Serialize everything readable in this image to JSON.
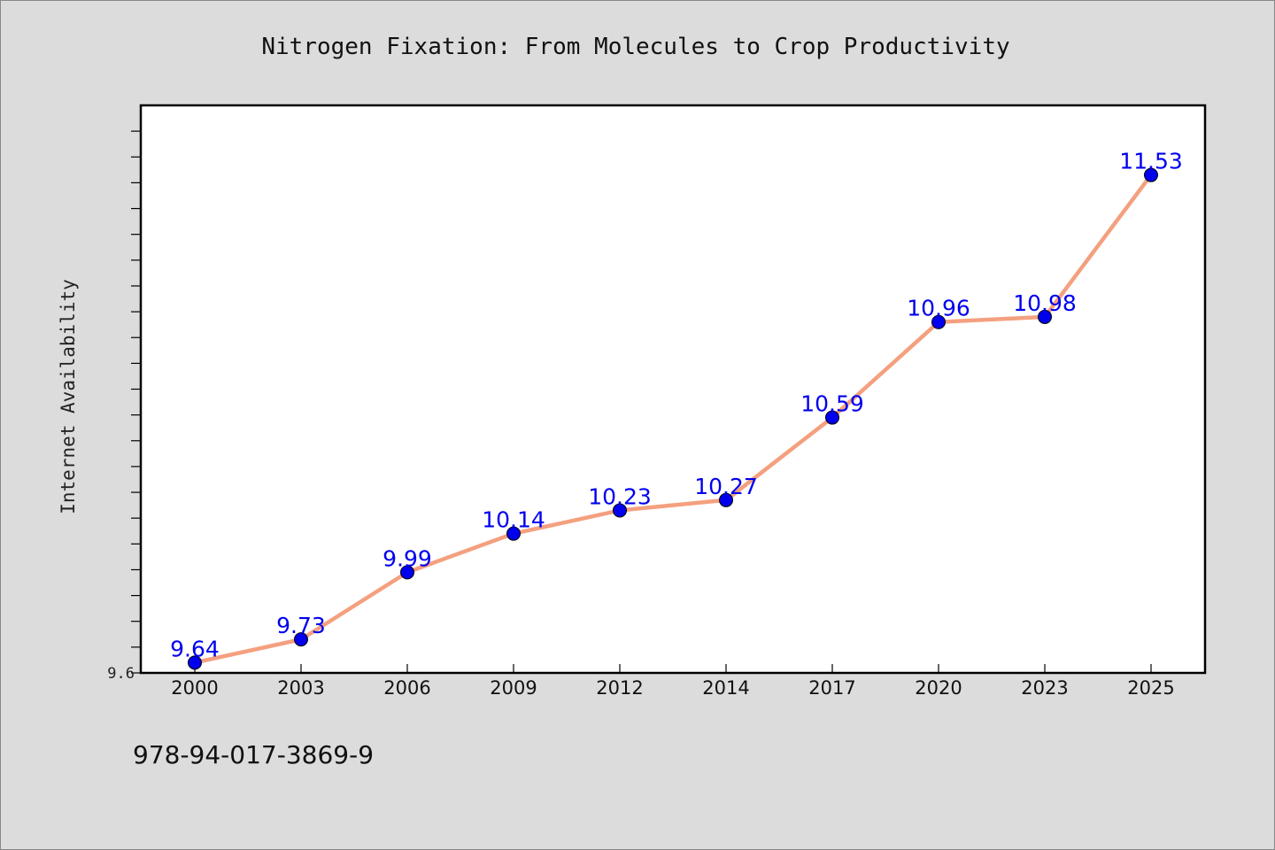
{
  "chart_data": {
    "type": "line",
    "title": "Nitrogen Fixation: From Molecules to Crop Productivity",
    "xlabel": "",
    "ylabel": "Internet Availability",
    "categories": [
      "2000",
      "2003",
      "2006",
      "2009",
      "2012",
      "2014",
      "2017",
      "2020",
      "2023",
      "2025"
    ],
    "series": [
      {
        "values": [
          9.64,
          9.73,
          9.99,
          10.14,
          10.23,
          10.27,
          10.59,
          10.96,
          10.98,
          11.53
        ]
      }
    ],
    "data_labels": [
      "9.64",
      "9.73",
      "9.99",
      "10.14",
      "10.23",
      "10.27",
      "10.59",
      "10.96",
      "10.98",
      "11.53"
    ],
    "ylim": [
      9.6,
      11.8
    ],
    "y_tick_label": "9.6",
    "grid": false,
    "legend": "none",
    "colors": {
      "line": "#f4a07f",
      "marker": "#0000ee",
      "data_label": "#0000ee",
      "plot_background": "#ffffff",
      "page_background": "#dcdcdc"
    }
  },
  "footer": {
    "isbn": "978-94-017-3869-9"
  }
}
